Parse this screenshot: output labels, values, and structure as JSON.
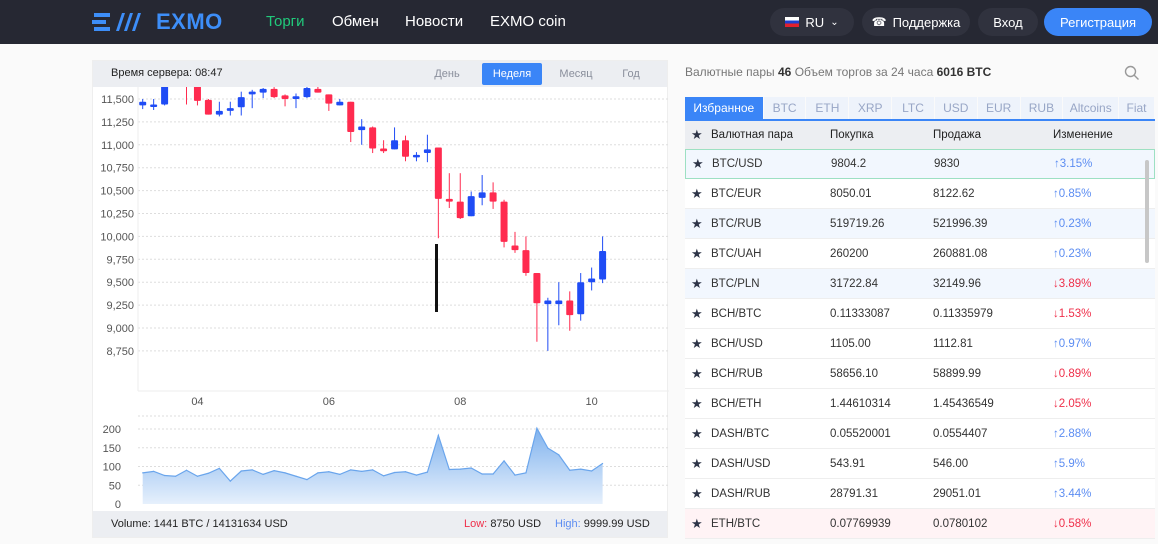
{
  "header": {
    "logo_text": "EXMO",
    "nav": [
      "Торги",
      "Обмен",
      "Новости",
      "EXMO coin"
    ],
    "lang": "RU",
    "support": "Поддержка",
    "login": "Вход",
    "register": "Регистрация"
  },
  "chart_panel": {
    "server_time": "Время сервера: 08:47",
    "periods": [
      "День",
      "Неделя",
      "Месяц",
      "Год"
    ],
    "active_period": "Неделя",
    "footer": {
      "volume": "Volume: 1441 BTC / 14131634 USD",
      "low_label": "Low:",
      "low_value": "8750 USD",
      "high_label": "High:",
      "high_value": "9999.99 USD"
    }
  },
  "chart_data": [
    {
      "type": "candlestick",
      "ylim": [
        8650,
        11800
      ],
      "yticks": [
        "11,500",
        "11,250",
        "11,000",
        "10,750",
        "10,500",
        "10,250",
        "10,000",
        "9,750",
        "9,500",
        "9,250",
        "9,000",
        "8,750"
      ],
      "ytick_values": [
        11500,
        11250,
        11000,
        10750,
        10500,
        10250,
        10000,
        9750,
        9500,
        9250,
        9000,
        8750
      ],
      "xticks": [
        {
          "index": 5,
          "label": "04"
        },
        {
          "index": 17,
          "label": "06"
        },
        {
          "index": 29,
          "label": "08"
        },
        {
          "index": 41,
          "label": "10"
        }
      ],
      "grid": true,
      "colors": {
        "up": "#1f4cf5",
        "down": "#ff2b4f"
      },
      "ohlc": [
        [
          11430,
          11470,
          11500,
          11390
        ],
        [
          11420,
          11440,
          11500,
          11380
        ],
        [
          11440,
          11640,
          11650,
          11430
        ],
        [
          11660,
          11700,
          11730,
          11640
        ],
        [
          11700,
          11660,
          11720,
          11440
        ],
        [
          11640,
          11480,
          11640,
          11430
        ],
        [
          11490,
          11330,
          11500,
          11330
        ],
        [
          11330,
          11370,
          11470,
          11310
        ],
        [
          11370,
          11400,
          11470,
          11320
        ],
        [
          11410,
          11520,
          11580,
          11320
        ],
        [
          11550,
          11580,
          11600,
          11400
        ],
        [
          11570,
          11610,
          11620,
          11510
        ],
        [
          11610,
          11520,
          11630,
          11510
        ],
        [
          11540,
          11500,
          11550,
          11420
        ],
        [
          11500,
          11530,
          11560,
          11400
        ],
        [
          11520,
          11620,
          11670,
          11510
        ],
        [
          11610,
          11570,
          11670,
          11570
        ],
        [
          11550,
          11450,
          11550,
          11370
        ],
        [
          11430,
          11470,
          11500,
          11430
        ],
        [
          11470,
          11140,
          11470,
          11030
        ],
        [
          11160,
          11200,
          11280,
          11000
        ],
        [
          11190,
          10960,
          11200,
          10910
        ],
        [
          10960,
          10930,
          11050,
          10910
        ],
        [
          10950,
          11050,
          11190,
          10950
        ],
        [
          11050,
          10870,
          11100,
          10820
        ],
        [
          10870,
          10890,
          10920,
          10820
        ],
        [
          10910,
          10950,
          11110,
          10810
        ],
        [
          10970,
          10410,
          10970,
          9980
        ],
        [
          10410,
          10380,
          10690,
          10310
        ],
        [
          10380,
          10200,
          10690,
          10190
        ],
        [
          10220,
          10440,
          10490,
          10220
        ],
        [
          10420,
          10480,
          10670,
          10340
        ],
        [
          10480,
          10380,
          10590,
          10300
        ],
        [
          10380,
          9940,
          10400,
          9880
        ],
        [
          9900,
          9850,
          10050,
          9820
        ],
        [
          9850,
          9600,
          10000,
          9570
        ],
        [
          9600,
          9270,
          9600,
          8850
        ],
        [
          9260,
          9300,
          9330,
          8750
        ],
        [
          9260,
          9300,
          9500,
          9030
        ],
        [
          9300,
          9140,
          9400,
          8970
        ],
        [
          9150,
          9500,
          9600,
          9080
        ],
        [
          9500,
          9540,
          9660,
          9410
        ],
        [
          9530,
          9840,
          10000,
          9490
        ]
      ]
    },
    {
      "type": "area",
      "ylim": [
        0,
        230
      ],
      "yticks": [
        "200",
        "150",
        "100",
        "50",
        "0"
      ],
      "ytick_values": [
        200,
        150,
        100,
        50,
        0
      ],
      "grid": true,
      "color": "#7fb2ee",
      "values": [
        83,
        87,
        76,
        74,
        90,
        74,
        82,
        95,
        61,
        88,
        91,
        79,
        89,
        83,
        74,
        65,
        83,
        86,
        79,
        91,
        87,
        91,
        75,
        84,
        86,
        77,
        85,
        183,
        92,
        93,
        96,
        80,
        80,
        115,
        77,
        83,
        202,
        149,
        131,
        90,
        93,
        88,
        108
      ]
    }
  ],
  "pairs_panel": {
    "label": "Валютные пары",
    "count": "46",
    "volume_label": "Объем торгов за 24 часа",
    "volume_value": "6016 BTC",
    "tabs": [
      "Избранное",
      "BTC",
      "ETH",
      "XRP",
      "LTC",
      "USD",
      "EUR",
      "RUB",
      "Altcoins",
      "Fiat"
    ],
    "active_tab": "Избранное",
    "columns": [
      "Валютная пара",
      "Покупка",
      "Продажа",
      "Изменение"
    ],
    "rows": [
      {
        "pair": "BTC/USD",
        "buy": "9804.2",
        "sell": "9830",
        "change": "3.15%",
        "dir": "up"
      },
      {
        "pair": "BTC/EUR",
        "buy": "8050.01",
        "sell": "8122.62",
        "change": "0.85%",
        "dir": "up"
      },
      {
        "pair": "BTC/RUB",
        "buy": "519719.26",
        "sell": "521996.39",
        "change": "0.23%",
        "dir": "up"
      },
      {
        "pair": "BTC/UAH",
        "buy": "260200",
        "sell": "260881.08",
        "change": "0.23%",
        "dir": "up"
      },
      {
        "pair": "BTC/PLN",
        "buy": "31722.84",
        "sell": "32149.96",
        "change": "3.89%",
        "dir": "down"
      },
      {
        "pair": "BCH/BTC",
        "buy": "0.11333087",
        "sell": "0.11335979",
        "change": "1.53%",
        "dir": "down"
      },
      {
        "pair": "BCH/USD",
        "buy": "1105.00",
        "sell": "1112.81",
        "change": "0.97%",
        "dir": "up"
      },
      {
        "pair": "BCH/RUB",
        "buy": "58656.10",
        "sell": "58899.99",
        "change": "0.89%",
        "dir": "down"
      },
      {
        "pair": "BCH/ETH",
        "buy": "1.44610314",
        "sell": "1.45436549",
        "change": "2.05%",
        "dir": "down"
      },
      {
        "pair": "DASH/BTC",
        "buy": "0.05520001",
        "sell": "0.0554407",
        "change": "2.88%",
        "dir": "up"
      },
      {
        "pair": "DASH/USD",
        "buy": "543.91",
        "sell": "546.00",
        "change": "5.9%",
        "dir": "up"
      },
      {
        "pair": "DASH/RUB",
        "buy": "28791.31",
        "sell": "29051.01",
        "change": "3.44%",
        "dir": "up"
      },
      {
        "pair": "ETH/BTC",
        "buy": "0.07769939",
        "sell": "0.0780102",
        "change": "0.58%",
        "dir": "down"
      }
    ]
  }
}
